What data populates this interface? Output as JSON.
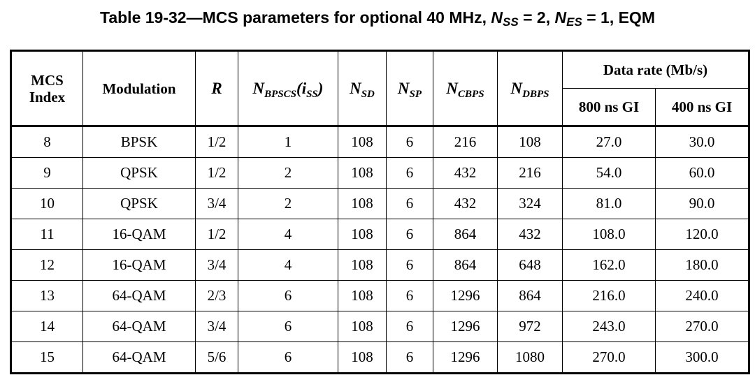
{
  "caption": {
    "prefix": "Table 19-32—MCS parameters for optional 40 MHz, ",
    "nss_sym": "N",
    "nss_sub": "SS",
    "nss_val": " = 2, ",
    "nes_sym": "N",
    "nes_sub": "ES",
    "nes_val": " = 1, EQM"
  },
  "header": {
    "mcs_line1": "MCS",
    "mcs_line2": "Index",
    "modulation": "Modulation",
    "r": "R",
    "nbpscs_sym": "N",
    "nbpscs_sub": "BPSCS",
    "nbpscs_paren_open": "(i",
    "nbpscs_paren_sub": "SS",
    "nbpscs_paren_close": ")",
    "nsd_sym": "N",
    "nsd_sub": "SD",
    "nsp_sym": "N",
    "nsp_sub": "SP",
    "ncbps_sym": "N",
    "ncbps_sub": "CBPS",
    "ndbps_sym": "N",
    "ndbps_sub": "DBPS",
    "data_rate": "Data rate (Mb/s)",
    "gi800": "800 ns GI",
    "gi400": "400 ns GI"
  },
  "rows": [
    {
      "mcs": "8",
      "mod": "BPSK",
      "r": "1/2",
      "nbpscs": "1",
      "nsd": "108",
      "nsp": "6",
      "ncbps": "216",
      "ndbps": "108",
      "gi800": "27.0",
      "gi400": "30.0"
    },
    {
      "mcs": "9",
      "mod": "QPSK",
      "r": "1/2",
      "nbpscs": "2",
      "nsd": "108",
      "nsp": "6",
      "ncbps": "432",
      "ndbps": "216",
      "gi800": "54.0",
      "gi400": "60.0"
    },
    {
      "mcs": "10",
      "mod": "QPSK",
      "r": "3/4",
      "nbpscs": "2",
      "nsd": "108",
      "nsp": "6",
      "ncbps": "432",
      "ndbps": "324",
      "gi800": "81.0",
      "gi400": "90.0"
    },
    {
      "mcs": "11",
      "mod": "16-QAM",
      "r": "1/2",
      "nbpscs": "4",
      "nsd": "108",
      "nsp": "6",
      "ncbps": "864",
      "ndbps": "432",
      "gi800": "108.0",
      "gi400": "120.0"
    },
    {
      "mcs": "12",
      "mod": "16-QAM",
      "r": "3/4",
      "nbpscs": "4",
      "nsd": "108",
      "nsp": "6",
      "ncbps": "864",
      "ndbps": "648",
      "gi800": "162.0",
      "gi400": "180.0"
    },
    {
      "mcs": "13",
      "mod": "64-QAM",
      "r": "2/3",
      "nbpscs": "6",
      "nsd": "108",
      "nsp": "6",
      "ncbps": "1296",
      "ndbps": "864",
      "gi800": "216.0",
      "gi400": "240.0"
    },
    {
      "mcs": "14",
      "mod": "64-QAM",
      "r": "3/4",
      "nbpscs": "6",
      "nsd": "108",
      "nsp": "6",
      "ncbps": "1296",
      "ndbps": "972",
      "gi800": "243.0",
      "gi400": "270.0"
    },
    {
      "mcs": "15",
      "mod": "64-QAM",
      "r": "5/6",
      "nbpscs": "6",
      "nsd": "108",
      "nsp": "6",
      "ncbps": "1296",
      "ndbps": "1080",
      "gi800": "270.0",
      "gi400": "300.0"
    }
  ]
}
